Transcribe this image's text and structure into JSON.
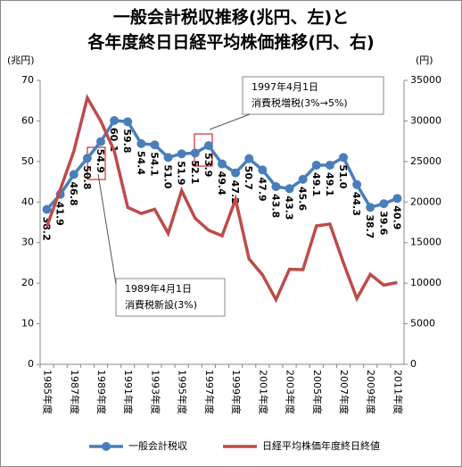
{
  "chart_data": {
    "type": "line",
    "title": [
      "一般会計税収推移(兆円、左)と",
      "各年度終日日経平均株価推移(円、右)"
    ],
    "y_axis_label": "(兆円)",
    "y2_axis_label": "(円)",
    "categories": [
      "1985年度",
      null,
      "1987年度",
      null,
      "1989年度",
      null,
      "1991年度",
      null,
      "1993年度",
      null,
      "1995年度",
      null,
      "1997年度",
      null,
      "1999年度",
      null,
      "2001年度",
      null,
      "2003年度",
      null,
      "2005年度",
      null,
      "2007年度",
      null,
      "2009年度",
      null,
      "2011年度"
    ],
    "series": [
      {
        "name": "一般会計税収",
        "color": "#4a7ebb",
        "values": [
          38.2,
          41.9,
          46.8,
          50.8,
          54.9,
          60.1,
          59.8,
          54.4,
          54.1,
          51.0,
          51.9,
          52.1,
          53.9,
          49.4,
          47.2,
          50.7,
          47.9,
          43.8,
          43.3,
          45.6,
          49.1,
          49.1,
          51.0,
          44.3,
          38.7,
          39.6,
          40.9
        ],
        "value_labels": [
          "38.2",
          "41.9",
          "46.8",
          "50.8",
          "54.9",
          "60.1",
          "59.8",
          "54.4",
          "54.1",
          "51.0",
          "51.9",
          "52.1",
          "53.9",
          "49.4",
          "47.2",
          "50.7",
          "47.9",
          "43.8",
          "43.3",
          "45.6",
          "49.1",
          "49.1",
          "51.0",
          "44.3",
          "38.7",
          "39.6",
          "40.9"
        ]
      },
      {
        "name": "日経平均株価年度終日終値",
        "color": "#be4b48",
        "axis": "y2",
        "values": [
          17000,
          21567,
          26260,
          32839,
          29980,
          26292,
          19346,
          18591,
          19112,
          16140,
          21407,
          18003,
          16527,
          15837,
          20337,
          12999,
          11025,
          7973,
          11715,
          11669,
          17060,
          17288,
          12526,
          8110,
          11090,
          9755,
          10084
        ]
      }
    ],
    "ylim": [
      0,
      70
    ],
    "yticks": [
      0,
      10,
      20,
      30,
      40,
      50,
      60,
      70
    ],
    "y2lim": [
      0,
      35000
    ],
    "y2ticks": [
      0,
      5000,
      10000,
      15000,
      20000,
      25000,
      30000,
      35000
    ],
    "annotations": [
      {
        "lines": [
          "1997年4月1日",
          "消費税増税(3%→5%)"
        ],
        "index": 12
      },
      {
        "lines": [
          "1989年4月1日",
          "消費税新設(3%)"
        ],
        "index": 4
      }
    ],
    "grid": false,
    "legend": "bottom"
  }
}
